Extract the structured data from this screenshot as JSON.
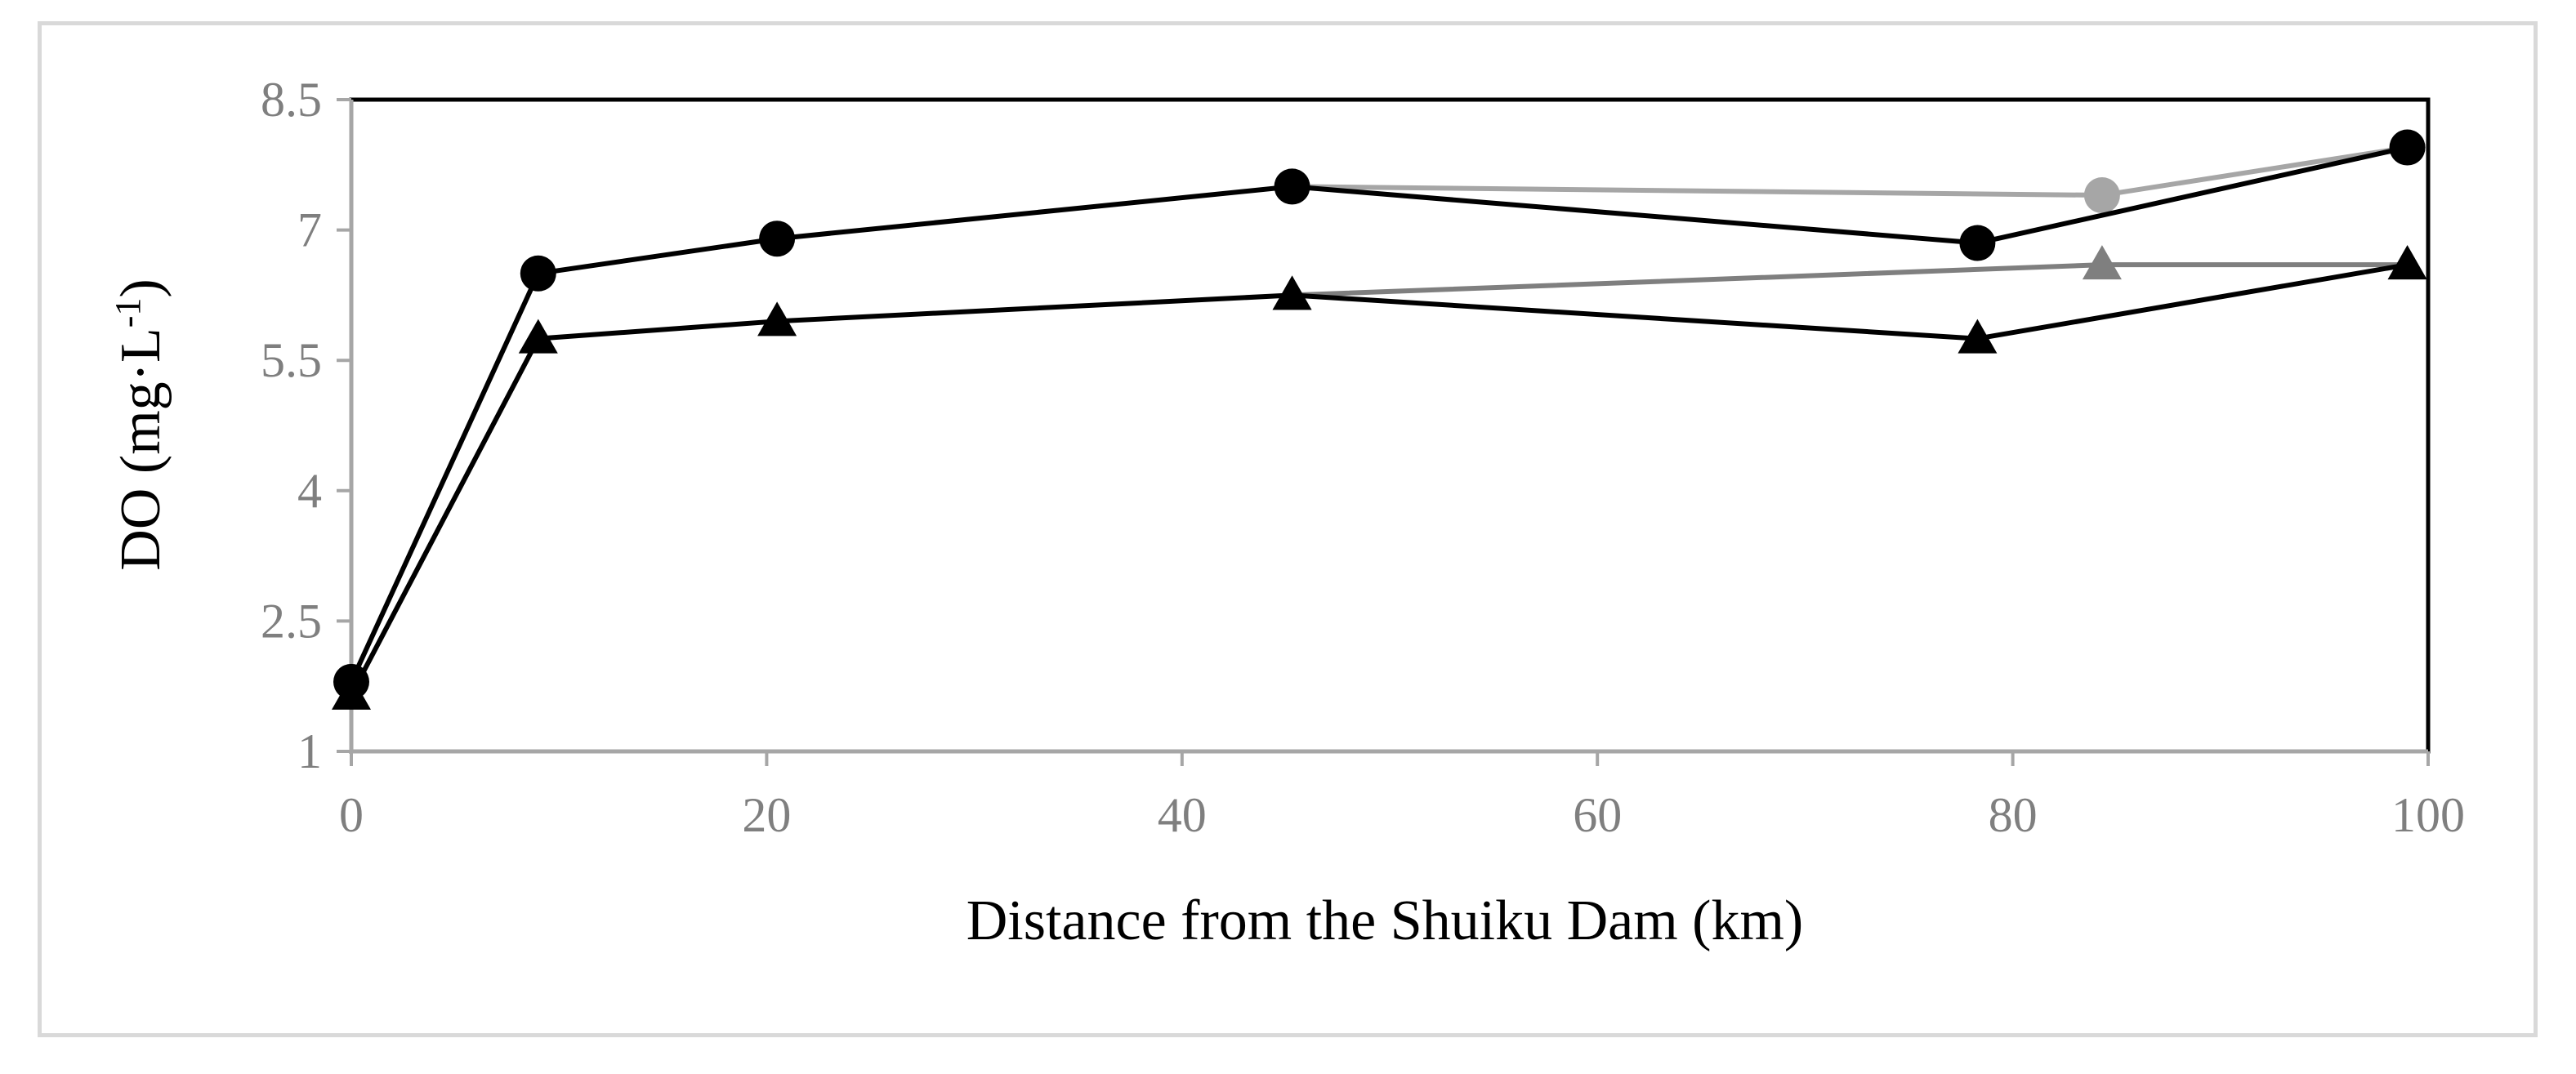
{
  "chart_data": {
    "type": "line",
    "xlabel": "Distance from the Shuiku Dam (km)",
    "ylabel": {
      "main": "DO (mg·L",
      "sup": "-1",
      "close": ")"
    },
    "xlim": [
      0,
      100
    ],
    "ylim": [
      1,
      8.5
    ],
    "x_ticks": [
      0,
      20,
      40,
      60,
      80,
      100
    ],
    "x_tick_labels": [
      "0",
      "20",
      "40",
      "60",
      "80",
      "100"
    ],
    "y_ticks": [
      1,
      2.5,
      4,
      5.5,
      7,
      8.5
    ],
    "y_tick_labels": [
      "1",
      "2.5",
      "4",
      "5.5",
      "7",
      "8.5"
    ],
    "grid": false,
    "legend": "none",
    "series": [
      {
        "marker": "circle",
        "color": "#000000",
        "x": [
          0,
          9,
          20.5,
          45.3,
          78.3,
          99
        ],
        "y": [
          1.8,
          6.5,
          6.9,
          7.5,
          6.85,
          7.95
        ]
      },
      {
        "marker": "circle",
        "color": "#a6a6a6",
        "x": [
          45.3,
          84.3,
          99
        ],
        "y": [
          7.5,
          7.4,
          7.95
        ]
      },
      {
        "marker": "triangle",
        "color": "#000000",
        "x": [
          0,
          9,
          20.5,
          45.3,
          78.3,
          99
        ],
        "y": [
          1.65,
          5.75,
          5.95,
          6.25,
          5.75,
          6.6
        ]
      },
      {
        "marker": "triangle",
        "color": "#7f7f7f",
        "x": [
          45.3,
          84.3,
          99
        ],
        "y": [
          6.25,
          6.6,
          6.6
        ]
      }
    ]
  }
}
